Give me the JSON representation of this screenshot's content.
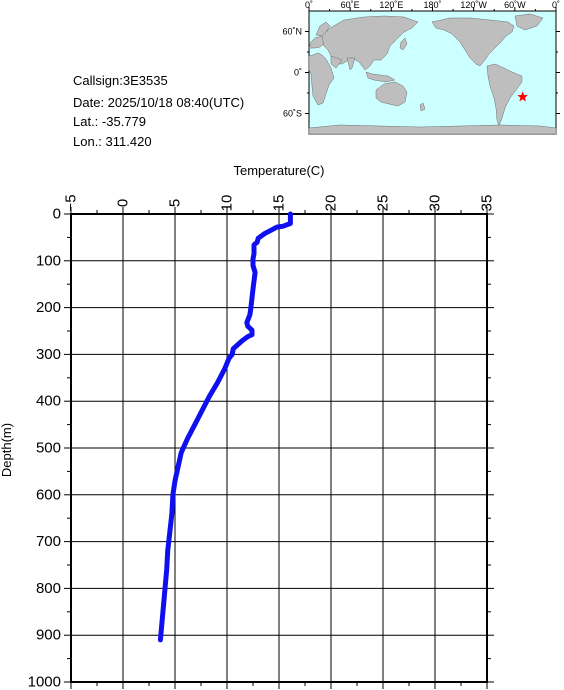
{
  "station": {
    "callsign_text": "Callsign:3E3535",
    "date_text": "Date:  2025/10/18 08:40(UTC)",
    "lat_text": "Lat.:  -35.779",
    "lon_text": "Lon.:  311.420"
  },
  "map": {
    "lon_labels": [
      "0˚",
      "60˚E",
      "120˚E",
      "180˚",
      "120˚W",
      "60˚W",
      "0˚"
    ],
    "lat_labels": [
      "60˚N",
      "0˚",
      "60˚S"
    ],
    "marker": {
      "lat": -35.779,
      "lon": 311.42,
      "color": "#ff0000",
      "symbol": "star"
    },
    "ocean_color": "#ccffff",
    "land_color": "#bebebe"
  },
  "chart_data": {
    "type": "line",
    "xlabel": "Temperature(C)",
    "ylabel": "Depth(m)",
    "xlim": [
      -5,
      35
    ],
    "ylim": [
      0,
      1000
    ],
    "y_inverted": true,
    "x_ticks": [
      -5,
      0,
      5,
      10,
      15,
      20,
      25,
      30,
      35
    ],
    "y_ticks": [
      0,
      100,
      200,
      300,
      400,
      500,
      600,
      700,
      800,
      900,
      1000
    ],
    "grid": true,
    "series": [
      {
        "color": "#1010ee",
        "points": [
          [
            16.1,
            0
          ],
          [
            16.1,
            20
          ],
          [
            15.4,
            26
          ],
          [
            14.8,
            28
          ],
          [
            14.2,
            35
          ],
          [
            13.6,
            42
          ],
          [
            13.0,
            52
          ],
          [
            12.9,
            60
          ],
          [
            12.6,
            66
          ],
          [
            12.6,
            85
          ],
          [
            12.5,
            96
          ],
          [
            12.5,
            110
          ],
          [
            12.7,
            125
          ],
          [
            12.5,
            160
          ],
          [
            12.3,
            200
          ],
          [
            12.2,
            215
          ],
          [
            11.9,
            232
          ],
          [
            12.0,
            240
          ],
          [
            12.4,
            248
          ],
          [
            12.4,
            258
          ],
          [
            12.0,
            262
          ],
          [
            11.5,
            270
          ],
          [
            11.0,
            280
          ],
          [
            10.6,
            288
          ],
          [
            10.5,
            300
          ],
          [
            10.2,
            308
          ],
          [
            9.8,
            330
          ],
          [
            9.1,
            360
          ],
          [
            8.3,
            390
          ],
          [
            7.6,
            420
          ],
          [
            6.9,
            450
          ],
          [
            6.2,
            480
          ],
          [
            5.6,
            510
          ],
          [
            5.3,
            540
          ],
          [
            5.0,
            570
          ],
          [
            4.8,
            600
          ],
          [
            4.7,
            640
          ],
          [
            4.5,
            680
          ],
          [
            4.3,
            720
          ],
          [
            4.2,
            760
          ],
          [
            4.0,
            810
          ],
          [
            3.8,
            860
          ],
          [
            3.6,
            910
          ]
        ]
      }
    ]
  }
}
